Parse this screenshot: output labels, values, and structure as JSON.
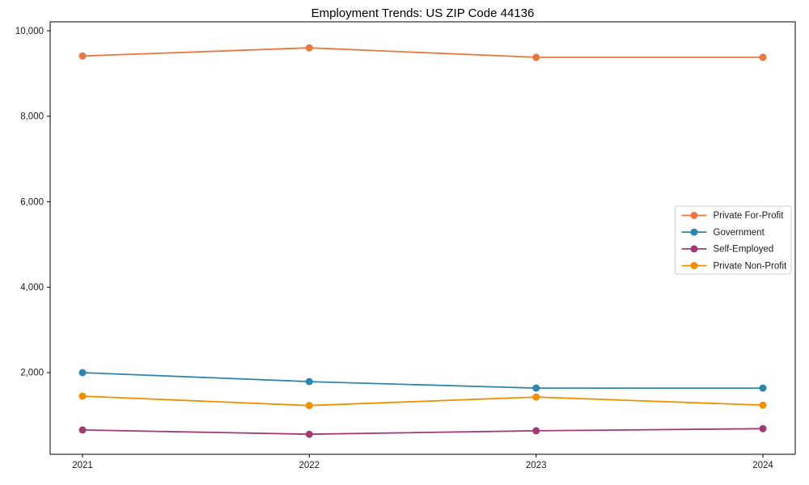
{
  "chart_data": {
    "type": "line",
    "title": "Employment Trends: US ZIP Code 44136",
    "x": [
      2021,
      2022,
      2023,
      2024
    ],
    "xticklabels": [
      "2021",
      "2022",
      "2023",
      "2024"
    ],
    "series": [
      {
        "name": "Private For-Profit",
        "color": "#E8783F",
        "values": [
          9410,
          9600,
          9380,
          9380
        ]
      },
      {
        "name": "Government",
        "color": "#2E86AB",
        "values": [
          2000,
          1790,
          1640,
          1640
        ]
      },
      {
        "name": "Self-Employed",
        "color": "#A23B72",
        "values": [
          660,
          560,
          640,
          690
        ]
      },
      {
        "name": "Private Non-Profit",
        "color": "#F18F01",
        "values": [
          1450,
          1230,
          1430,
          1240
        ]
      }
    ],
    "xlabel": "",
    "ylabel": "",
    "ylim": [
      90,
      10210
    ],
    "yticks": [
      2000,
      4000,
      6000,
      8000,
      10000
    ],
    "ytick_format": "thousands-comma",
    "grid": false,
    "marker": "circle",
    "legend_position": "center-right",
    "colors": {
      "axis": "#000000",
      "tick_label": "#1a1a1a",
      "legend_border": "#cccccc",
      "background": "#ffffff"
    }
  }
}
